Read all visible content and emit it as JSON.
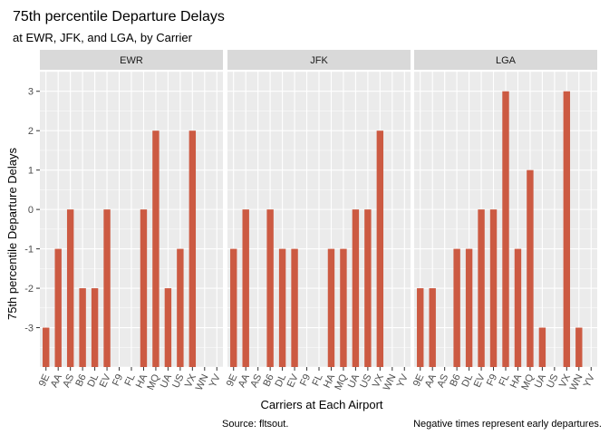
{
  "chart_data": {
    "type": "bar",
    "title": "75th percentile Departure Delays",
    "subtitle": "at EWR, JFK, and LGA, by Carrier",
    "xlabel": "Carriers at Each Airport",
    "ylabel": "75th percentile Departure Delays",
    "caption_left": "Source: fltsout.",
    "caption_right": "Negative times represent early departures.",
    "ylim": [
      -4,
      3.5
    ],
    "yticks": [
      -3,
      -2,
      -1,
      0,
      1,
      2,
      3
    ],
    "bar_baseline": -4,
    "grid": true,
    "bar_color": "#cc5a42",
    "panel_bg": "#ebebeb",
    "strip_bg": "#d9d9d9",
    "categories": [
      "9E",
      "AA",
      "AS",
      "B6",
      "DL",
      "EV",
      "F9",
      "FL",
      "HA",
      "MQ",
      "UA",
      "US",
      "VX",
      "WN",
      "YV"
    ],
    "panels": [
      {
        "name": "EWR",
        "values": [
          -3,
          -1,
          0,
          -2,
          -2,
          0,
          null,
          null,
          0,
          2,
          -2,
          -1,
          2,
          null,
          null
        ]
      },
      {
        "name": "JFK",
        "values": [
          -1,
          0,
          null,
          0,
          -1,
          -1,
          null,
          null,
          -1,
          -1,
          0,
          0,
          2,
          null,
          null
        ]
      },
      {
        "name": "LGA",
        "values": [
          -2,
          -2,
          null,
          -1,
          -1,
          0,
          0,
          3,
          -1,
          1,
          -3,
          null,
          3,
          -3,
          null
        ]
      }
    ]
  }
}
